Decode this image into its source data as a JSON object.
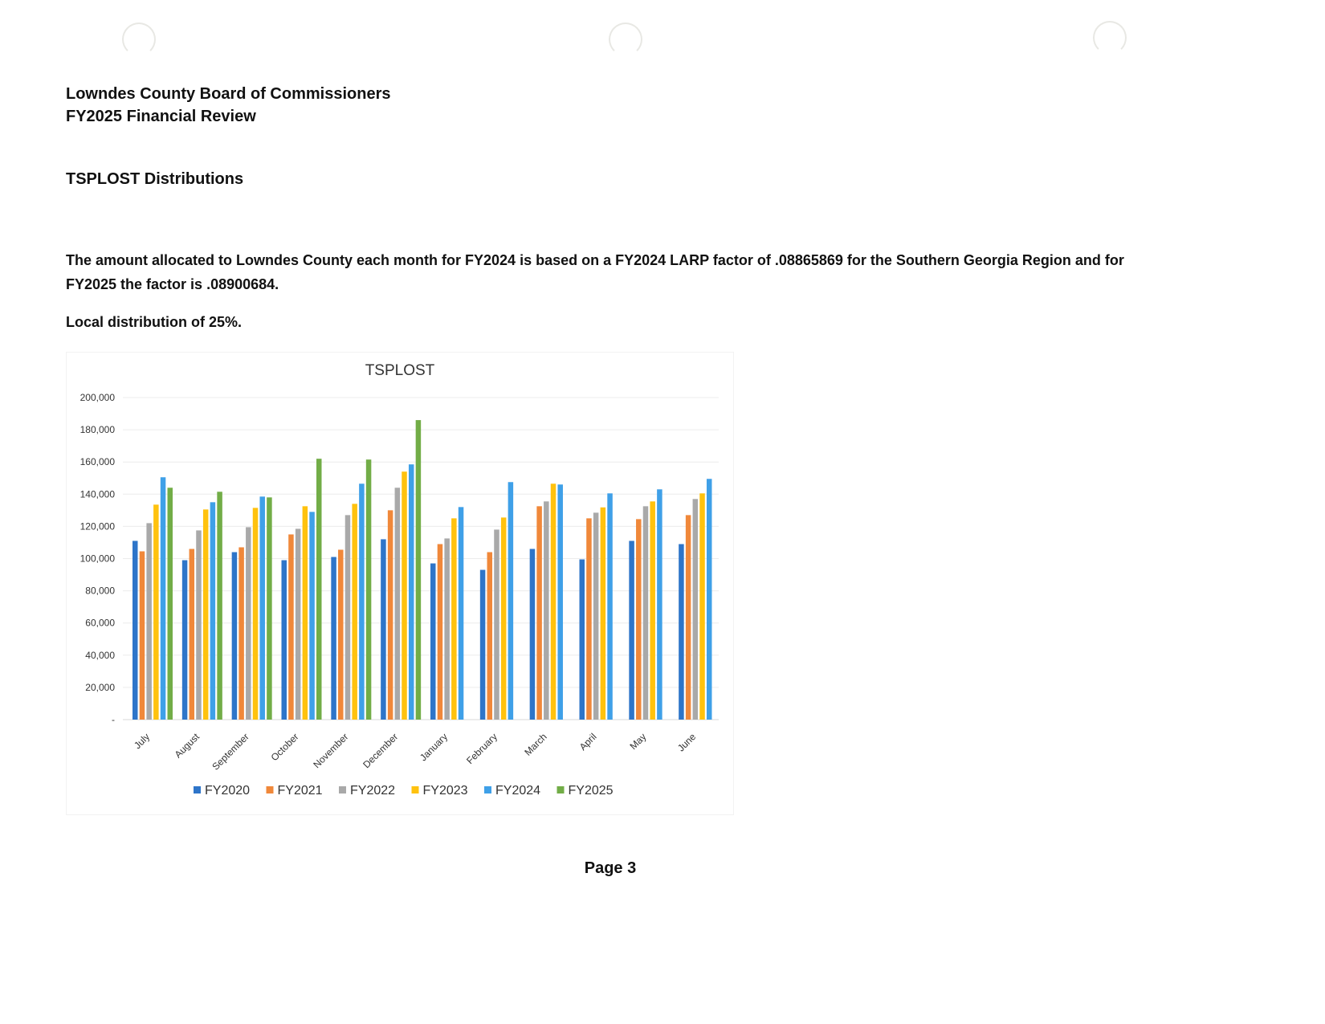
{
  "document": {
    "org_title": "Lowndes County Board of Commissioners",
    "report_title": "FY2025 Financial Review",
    "section_title": "TSPLOST Distributions",
    "paragraph_1": "The amount allocated to Lowndes County each month for FY2024 is based on a FY2024 LARP factor of .08865869 for the Southern Georgia Region and for FY2025 the factor is .08900684.",
    "paragraph_2": "Local distribution of 25%.",
    "page_label": "Page 3"
  },
  "chart_data": {
    "type": "bar",
    "title": "TSPLOST",
    "xlabel": "",
    "ylabel": "",
    "ylim": [
      0,
      200000
    ],
    "yticks": [
      "-",
      "20,000",
      "40,000",
      "60,000",
      "80,000",
      "100,000",
      "120,000",
      "140,000",
      "160,000",
      "180,000",
      "200,000"
    ],
    "grid": true,
    "legend_position": "bottom",
    "categories": [
      "July",
      "August",
      "September",
      "October",
      "November",
      "December",
      "January",
      "February",
      "March",
      "April",
      "May",
      "June"
    ],
    "series": [
      {
        "name": "FY2020",
        "color": "#2e75c9",
        "values": [
          111000,
          99000,
          104000,
          99000,
          101000,
          112000,
          97000,
          93000,
          106000,
          99500,
          111000,
          109000
        ]
      },
      {
        "name": "FY2021",
        "color": "#f0883a",
        "values": [
          104500,
          106000,
          107000,
          115000,
          105500,
          130000,
          109000,
          104000,
          132500,
          125000,
          124500,
          127000
        ]
      },
      {
        "name": "FY2022",
        "color": "#a9a9a9",
        "values": [
          122000,
          117500,
          119500,
          118500,
          127000,
          144000,
          112500,
          118000,
          135500,
          128500,
          132500,
          137000
        ]
      },
      {
        "name": "FY2023",
        "color": "#ffc20e",
        "values": [
          133500,
          130500,
          131500,
          132500,
          134000,
          154000,
          125000,
          125500,
          146500,
          131800,
          135500,
          140500
        ]
      },
      {
        "name": "FY2024",
        "color": "#3fa0e8",
        "values": [
          150500,
          135000,
          138500,
          129000,
          146500,
          158500,
          132000,
          147500,
          146000,
          140500,
          143000,
          149500
        ]
      },
      {
        "name": "FY2025",
        "color": "#72ad47",
        "values": [
          144000,
          141500,
          138000,
          162000,
          161500,
          186000,
          null,
          null,
          null,
          null,
          null,
          null
        ]
      }
    ]
  }
}
